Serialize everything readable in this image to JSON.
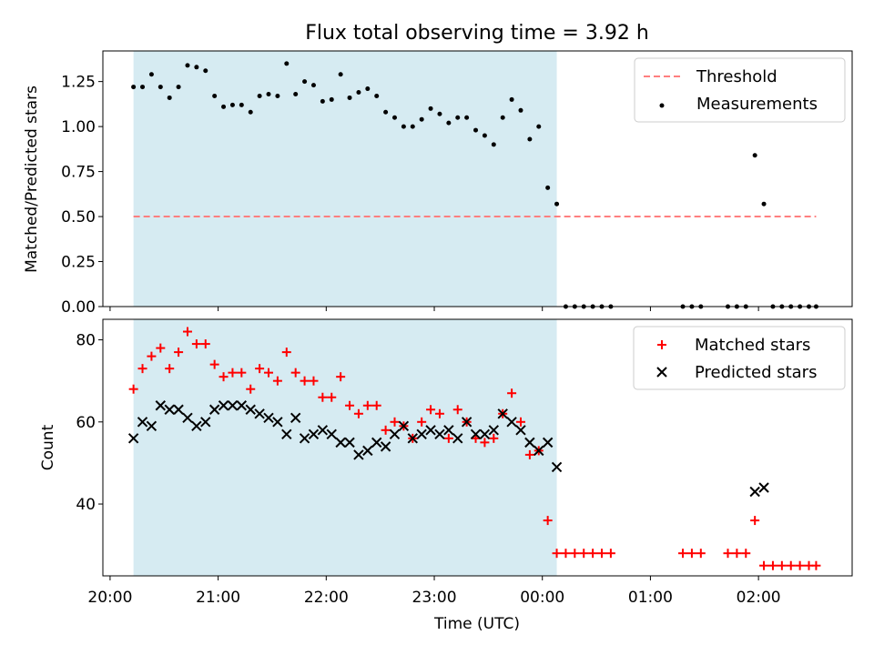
{
  "colors": {
    "band": "#add8e6",
    "threshold": "#ff7f7f",
    "measurement": "#000000",
    "matched": "#ff0000",
    "predicted": "#000000"
  },
  "chart_data": [
    {
      "type": "scatter",
      "title": "Flux total observing time = 3.92 h",
      "xlabel": "",
      "ylabel": "Matched/Predicted stars",
      "xlim": [
        "19:56",
        "02:52"
      ],
      "ylim": [
        0,
        1.42
      ],
      "yticks": [
        "0.00",
        "0.25",
        "0.50",
        "0.75",
        "1.00",
        "1.25"
      ],
      "shaded_interval": [
        "20:13",
        "00:08"
      ],
      "legend_position": "top-right",
      "threshold": {
        "name": "Threshold",
        "y": 0.5,
        "x": [
          "20:13",
          "02:32"
        ]
      },
      "series": [
        {
          "name": "Measurements",
          "x": [
            "20:13",
            "20:18",
            "20:23",
            "20:28",
            "20:33",
            "20:38",
            "20:43",
            "20:48",
            "20:53",
            "20:58",
            "21:03",
            "21:08",
            "21:13",
            "21:18",
            "21:23",
            "21:28",
            "21:33",
            "21:38",
            "21:43",
            "21:48",
            "21:53",
            "21:58",
            "22:03",
            "22:08",
            "22:13",
            "22:18",
            "22:23",
            "22:28",
            "22:33",
            "22:38",
            "22:43",
            "22:48",
            "22:53",
            "22:58",
            "23:03",
            "23:08",
            "23:13",
            "23:18",
            "23:23",
            "23:28",
            "23:33",
            "23:38",
            "23:43",
            "23:48",
            "23:53",
            "23:58",
            "00:03",
            "00:08",
            "00:13",
            "00:18",
            "00:23",
            "00:28",
            "00:33",
            "00:38",
            "01:18",
            "01:23",
            "01:28",
            "01:43",
            "01:48",
            "01:53",
            "01:58",
            "02:03",
            "02:08",
            "02:13",
            "02:18",
            "02:23",
            "02:28",
            "02:32"
          ],
          "y": [
            1.22,
            1.22,
            1.29,
            1.22,
            1.16,
            1.22,
            1.34,
            1.33,
            1.31,
            1.17,
            1.11,
            1.12,
            1.12,
            1.08,
            1.17,
            1.18,
            1.17,
            1.35,
            1.18,
            1.25,
            1.23,
            1.14,
            1.15,
            1.29,
            1.16,
            1.19,
            1.21,
            1.17,
            1.08,
            1.05,
            1.0,
            1.0,
            1.04,
            1.1,
            1.07,
            1.02,
            1.05,
            1.05,
            0.98,
            0.95,
            0.9,
            1.05,
            1.15,
            1.09,
            0.93,
            1.0,
            0.66,
            0.57,
            0,
            0,
            0,
            0,
            0,
            0,
            0,
            0,
            0,
            0,
            0,
            0,
            0.84,
            0.57,
            0,
            0,
            0,
            0,
            0,
            0
          ]
        }
      ]
    },
    {
      "type": "scatter",
      "title": "",
      "xlabel": "Time (UTC)",
      "ylabel": "Count",
      "xlim": [
        "19:56",
        "02:52"
      ],
      "ylim": [
        22.5,
        85
      ],
      "xticks": [
        "20:00",
        "21:00",
        "22:00",
        "23:00",
        "00:00",
        "01:00",
        "02:00"
      ],
      "yticks": [
        "40",
        "60",
        "80"
      ],
      "shaded_interval": [
        "20:13",
        "00:08"
      ],
      "legend_position": "top-right",
      "series": [
        {
          "name": "Matched stars",
          "marker": "+",
          "x": [
            "20:13",
            "20:18",
            "20:23",
            "20:28",
            "20:33",
            "20:38",
            "20:43",
            "20:48",
            "20:53",
            "20:58",
            "21:03",
            "21:08",
            "21:13",
            "21:18",
            "21:23",
            "21:28",
            "21:33",
            "21:38",
            "21:43",
            "21:48",
            "21:53",
            "21:58",
            "22:03",
            "22:08",
            "22:13",
            "22:18",
            "22:23",
            "22:28",
            "22:33",
            "22:38",
            "22:43",
            "22:48",
            "22:53",
            "22:58",
            "23:03",
            "23:08",
            "23:13",
            "23:18",
            "23:23",
            "23:28",
            "23:33",
            "23:38",
            "23:43",
            "23:48",
            "23:53",
            "23:58",
            "00:03",
            "00:08",
            "00:13",
            "00:18",
            "00:23",
            "00:28",
            "00:33",
            "00:38",
            "01:18",
            "01:23",
            "01:28",
            "01:43",
            "01:48",
            "01:53",
            "01:58",
            "02:03",
            "02:08",
            "02:13",
            "02:18",
            "02:23",
            "02:28",
            "02:32"
          ],
          "y": [
            68,
            73,
            76,
            78,
            73,
            77,
            82,
            79,
            79,
            74,
            71,
            72,
            72,
            68,
            73,
            72,
            70,
            77,
            72,
            70,
            70,
            66,
            66,
            71,
            64,
            62,
            64,
            64,
            58,
            60,
            59,
            56,
            60,
            63,
            62,
            56,
            63,
            60,
            56,
            55,
            56,
            62,
            67,
            60,
            52,
            53,
            36,
            28,
            28,
            28,
            28,
            28,
            28,
            28,
            28,
            28,
            28,
            28,
            28,
            28,
            36,
            25,
            25,
            25,
            25,
            25,
            25,
            25
          ]
        },
        {
          "name": "Predicted stars",
          "marker": "x",
          "x": [
            "20:13",
            "20:18",
            "20:23",
            "20:28",
            "20:33",
            "20:38",
            "20:43",
            "20:48",
            "20:53",
            "20:58",
            "21:03",
            "21:08",
            "21:13",
            "21:18",
            "21:23",
            "21:28",
            "21:33",
            "21:38",
            "21:43",
            "21:48",
            "21:53",
            "21:58",
            "22:03",
            "22:08",
            "22:13",
            "22:18",
            "22:23",
            "22:28",
            "22:33",
            "22:38",
            "22:43",
            "22:48",
            "22:53",
            "22:58",
            "23:03",
            "23:08",
            "23:13",
            "23:18",
            "23:23",
            "23:28",
            "23:33",
            "23:38",
            "23:43",
            "23:48",
            "23:53",
            "23:58",
            "00:03",
            "00:08",
            "01:58",
            "02:03"
          ],
          "y": [
            56,
            60,
            59,
            64,
            63,
            63,
            61,
            59,
            60,
            63,
            64,
            64,
            64,
            63,
            62,
            61,
            60,
            57,
            61,
            56,
            57,
            58,
            57,
            55,
            55,
            52,
            53,
            55,
            54,
            57,
            59,
            56,
            57,
            58,
            57,
            58,
            56,
            60,
            57,
            57,
            58,
            62,
            60,
            58,
            55,
            53,
            55,
            49,
            43,
            44
          ]
        }
      ]
    }
  ]
}
